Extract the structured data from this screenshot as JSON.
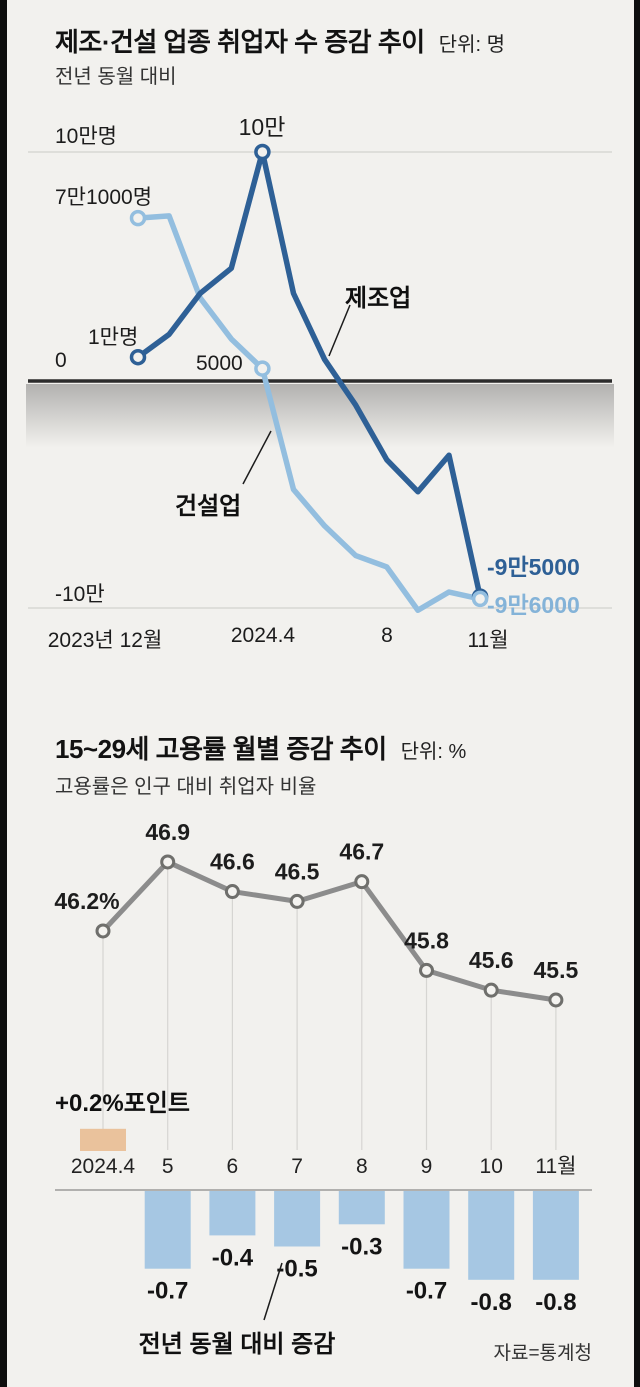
{
  "chart_data": [
    {
      "type": "line",
      "title": "제조·건설 업종 취업자 수 증감 추이",
      "unit_label": "단위: 명",
      "subtitle": "전년 동월 대비",
      "months": [
        "2023.12",
        "2024.1",
        "2024.2",
        "2024.3",
        "2024.4",
        "2024.5",
        "2024.6",
        "2024.7",
        "2024.8",
        "2024.9",
        "2024.10",
        "2024.11"
      ],
      "x_tick_labels": [
        "2023년 12월",
        "2024.4",
        "8",
        "11월"
      ],
      "ylim": [
        -110000,
        110000
      ],
      "gridlines": [
        100000,
        0,
        -100000
      ],
      "legend_position": "inline-annotations",
      "series": [
        {
          "name": "제조업",
          "color": "#2e6096",
          "values": [
            10000,
            20000,
            38000,
            49000,
            100000,
            38000,
            9000,
            -11000,
            -35000,
            -49000,
            -33000,
            -95000
          ],
          "marker_indices": [
            0,
            4,
            11
          ]
        },
        {
          "name": "건설업",
          "color": "#93bedf",
          "values": [
            71000,
            72000,
            36000,
            18000,
            5000,
            -48000,
            -64000,
            -77000,
            -82000,
            -101000,
            -93000,
            -96000
          ],
          "marker_indices": [
            0,
            4,
            11
          ]
        }
      ],
      "annotations": {
        "top_axis": "10만명",
        "peak": "10만",
        "construction_start": "7만1000명",
        "manufacturing_start": "1만명",
        "zero": "0",
        "construction_april": "5000",
        "manufacturing_label": "제조업",
        "construction_label": "건설업",
        "manufacturing_end": "-9만5000",
        "construction_end": "-9만6000",
        "bottom_axis": "-10만"
      }
    },
    {
      "type": "line+bar",
      "title": "15~29세 고용률 월별 증감 추이",
      "unit_label": "단위: %",
      "subtitle": "고용률은 인구 대비 취업자 비율",
      "categories": [
        "2024.4",
        "5",
        "6",
        "7",
        "8",
        "9",
        "10",
        "11월"
      ],
      "line": {
        "name": "고용률",
        "color": "#8c8c8c",
        "values": [
          46.2,
          46.9,
          46.6,
          46.5,
          46.7,
          45.8,
          45.6,
          45.5
        ],
        "labels": [
          "46.2%",
          "46.9",
          "46.6",
          "46.5",
          "46.7",
          "45.8",
          "45.6",
          "45.5"
        ]
      },
      "bars": {
        "name": "전년 동월 대비 증감",
        "values": [
          0.2,
          -0.7,
          -0.4,
          -0.5,
          -0.3,
          -0.7,
          -0.8,
          -0.8
        ],
        "labels": [
          "",
          "-0.7",
          "-0.4",
          "-0.5",
          "-0.3",
          "-0.7",
          "-0.8",
          "-0.8"
        ],
        "positive_label": "+0.2%포인트",
        "positive_color": "#eac29c",
        "negative_color": "#a6c7e3"
      },
      "caption": "전년 동월 대비 증감",
      "source": "자료=통계청"
    }
  ]
}
